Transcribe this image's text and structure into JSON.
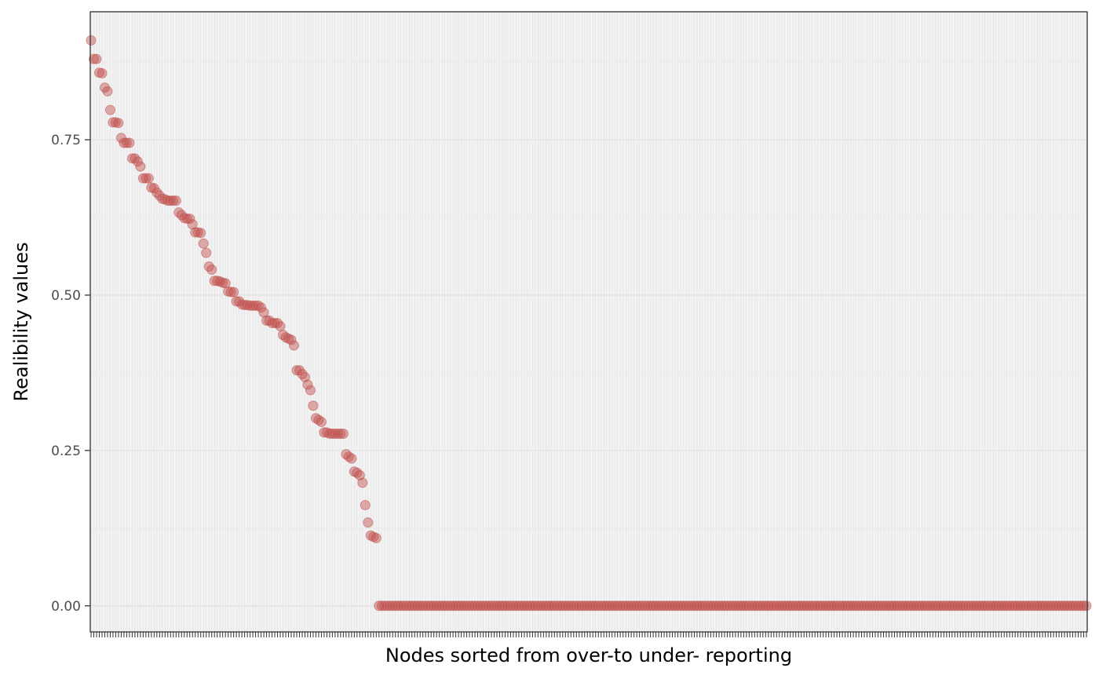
{
  "chart_data": {
    "type": "scatter",
    "xlabel": "Nodes sorted from over-to under- reporting",
    "ylabel": "Realibility values",
    "y_ticks": [
      0.0,
      0.25,
      0.5,
      0.75
    ],
    "y_tick_labels": [
      "0.00",
      "0.25",
      "0.50",
      "0.75"
    ],
    "ylim": [
      -0.042,
      0.956
    ],
    "x_ticks": "one tick per node, no tick labels",
    "n_nodes": 364,
    "grid": true,
    "point_color": "#C0504D",
    "point_alpha": 0.45,
    "panel_background": "#f2f2f2",
    "gridline_color": "#e0e0e0",
    "series": [
      {
        "values": [
          0.91,
          0.88,
          0.88,
          0.858,
          0.857,
          0.834,
          0.828,
          0.798,
          0.778,
          0.778,
          0.777,
          0.753,
          0.745,
          0.745,
          0.745,
          0.72,
          0.72,
          0.715,
          0.707,
          0.688,
          0.688,
          0.688,
          0.673,
          0.672,
          0.665,
          0.66,
          0.655,
          0.654,
          0.652,
          0.652,
          0.652,
          0.652,
          0.633,
          0.629,
          0.624,
          0.623,
          0.623,
          0.614,
          0.601,
          0.601,
          0.6,
          0.583,
          0.568,
          0.546,
          0.541,
          0.523,
          0.523,
          0.522,
          0.52,
          0.519,
          0.506,
          0.505,
          0.505,
          0.49,
          0.49,
          0.485,
          0.484,
          0.484,
          0.483,
          0.483,
          0.483,
          0.483,
          0.48,
          0.472,
          0.459,
          0.459,
          0.455,
          0.455,
          0.455,
          0.45,
          0.436,
          0.432,
          0.43,
          0.428,
          0.419,
          0.379,
          0.379,
          0.373,
          0.368,
          0.356,
          0.347,
          0.322,
          0.302,
          0.299,
          0.296,
          0.279,
          0.279,
          0.277,
          0.277,
          0.277,
          0.277,
          0.277,
          0.277,
          0.244,
          0.24,
          0.237,
          0.216,
          0.214,
          0.21,
          0.198,
          0.162,
          0.134,
          0.113,
          0.111,
          0.109
        ],
        "remaining_zero_count": 259
      }
    ]
  }
}
